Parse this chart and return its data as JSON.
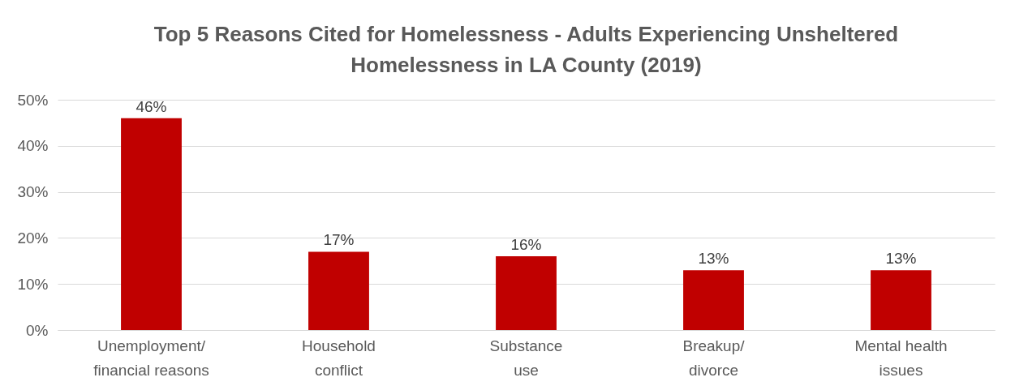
{
  "chart_data": {
    "type": "bar",
    "title": "Top 5 Reasons Cited for Homelessness - Adults Experiencing Unsheltered\nHomelessness in LA County (2019)",
    "categories": [
      "Unemployment/\nfinancial reasons",
      "Household\nconflict",
      "Substance\nuse",
      "Breakup/\ndivorce",
      "Mental health\nissues"
    ],
    "values": [
      46,
      17,
      16,
      13,
      13
    ],
    "color": "#c00000",
    "data_labels": true,
    "value_labels": [
      "46%",
      "17%",
      "16%",
      "13%",
      "13%"
    ],
    "ylim": [
      0,
      50
    ],
    "yticks": [
      {
        "value": 0,
        "label": "0%"
      },
      {
        "value": 10,
        "label": "10%"
      },
      {
        "value": 20,
        "label": "20%"
      },
      {
        "value": 30,
        "label": "30%"
      },
      {
        "value": 40,
        "label": "40%"
      },
      {
        "value": 50,
        "label": "50%"
      }
    ],
    "grid": true
  }
}
